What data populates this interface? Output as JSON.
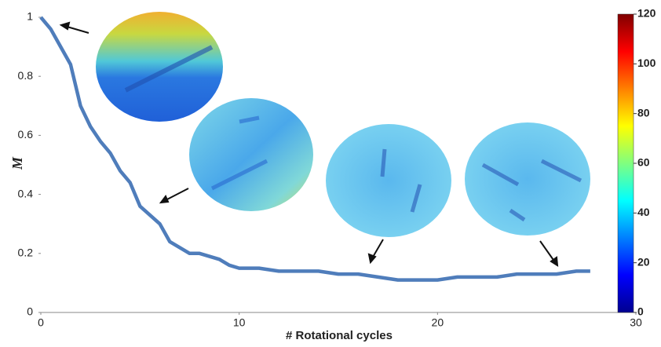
{
  "chart_data": {
    "type": "line",
    "x_label": "# Rotational cycles",
    "y_label": "M",
    "x": [
      0,
      0.5,
      1,
      1.5,
      2,
      2.5,
      3,
      3.5,
      4,
      4.5,
      5,
      5.5,
      6,
      6.5,
      7,
      7.5,
      8,
      8.5,
      9,
      9.5,
      10,
      11,
      12,
      13,
      14,
      15,
      16,
      17,
      18,
      19,
      20,
      21,
      22,
      23,
      24,
      25,
      26,
      27,
      27.7
    ],
    "series": [
      {
        "name": "M",
        "color": "#4f7dbb",
        "values": [
          1.0,
          0.96,
          0.9,
          0.84,
          0.7,
          0.63,
          0.58,
          0.54,
          0.48,
          0.44,
          0.36,
          0.33,
          0.3,
          0.24,
          0.22,
          0.2,
          0.2,
          0.19,
          0.18,
          0.16,
          0.15,
          0.15,
          0.14,
          0.14,
          0.14,
          0.13,
          0.13,
          0.12,
          0.11,
          0.11,
          0.11,
          0.12,
          0.12,
          0.12,
          0.13,
          0.13,
          0.13,
          0.14,
          0.14
        ]
      }
    ],
    "xlim": [
      0,
      30
    ],
    "xticks": [
      0,
      10,
      20,
      30
    ],
    "ylim": [
      0,
      1
    ],
    "yticks": [
      0,
      0.2,
      0.4,
      0.6,
      0.8,
      1
    ],
    "colorbar": {
      "lim": [
        0,
        120
      ],
      "ticks": [
        0,
        20,
        40,
        60,
        80,
        100,
        120
      ]
    }
  }
}
